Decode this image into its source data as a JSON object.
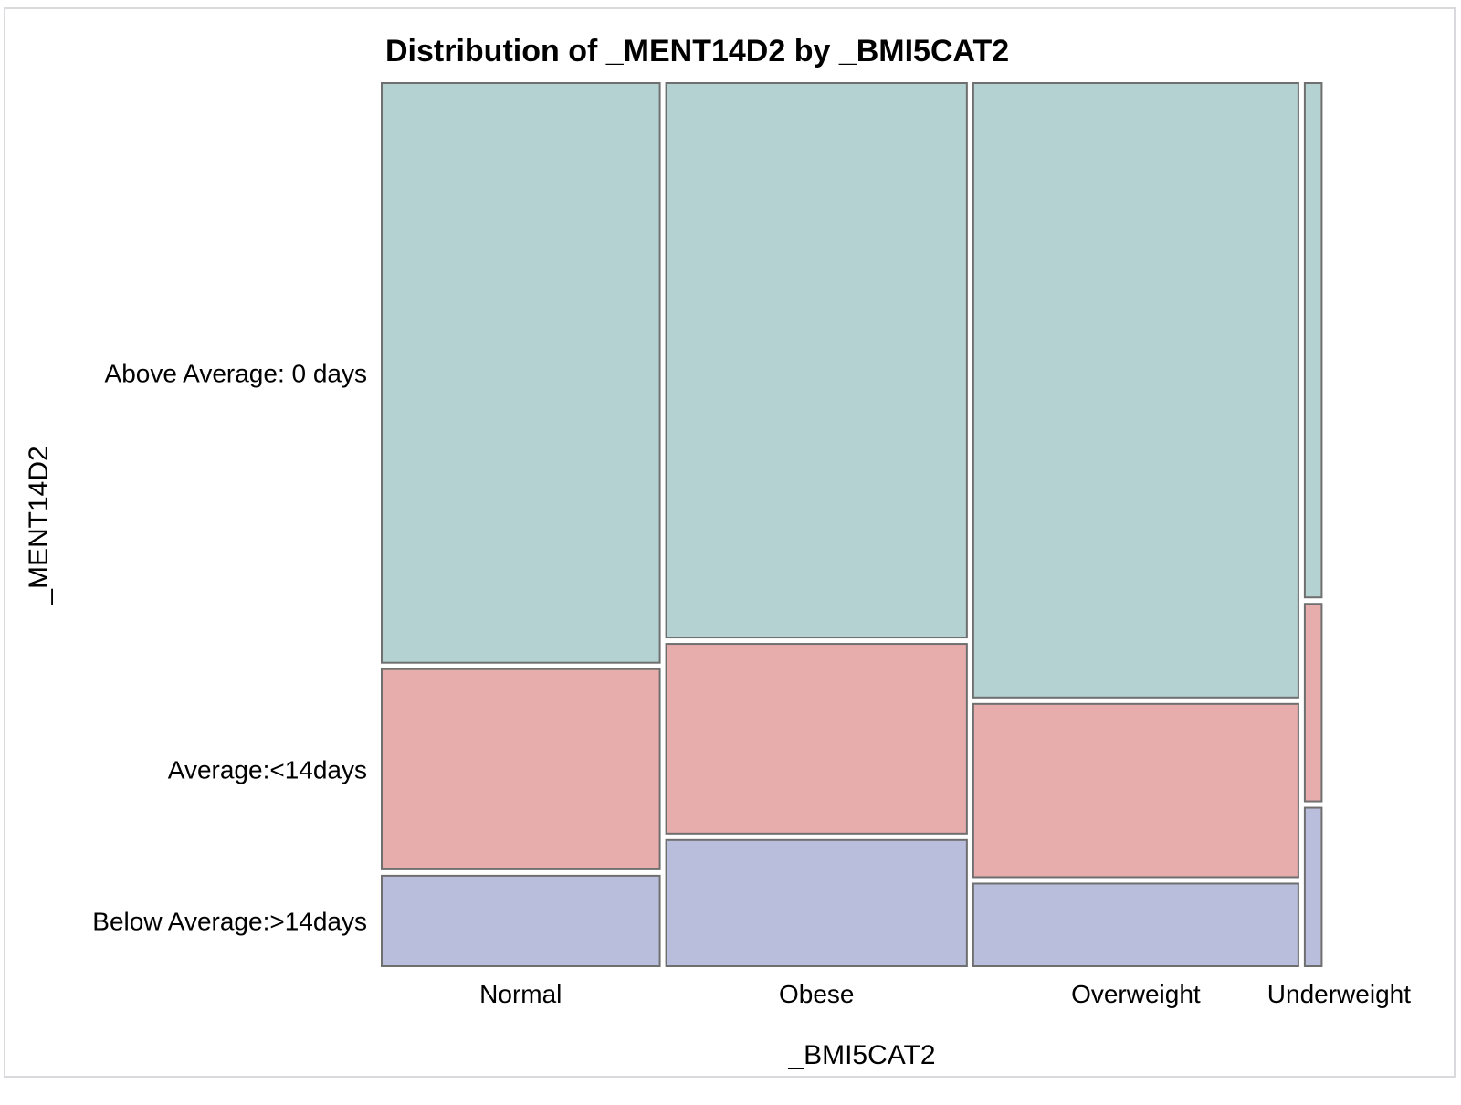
{
  "chart_data": {
    "type": "mosaic",
    "title": "Distribution of _MENT14D2 by _BMI5CAT2",
    "xlabel": "_BMI5CAT2",
    "ylabel": "_MENT14D2",
    "x_categories": [
      "Normal",
      "Obese",
      "Overweight",
      "Underweight"
    ],
    "x_proportions": [
      0.296,
      0.32,
      0.346,
      0.018
    ],
    "y_categories": [
      "Below Average:>14days",
      "Average:<14days",
      "Above Average: 0 days"
    ],
    "series": [
      {
        "name": "Below Average:>14days",
        "color": "#b8bedb",
        "values": [
          0.104,
          0.145,
          0.095,
          0.182
        ]
      },
      {
        "name": "Average:<14days",
        "color": "#e7acac",
        "values": [
          0.23,
          0.218,
          0.199,
          0.227
        ]
      },
      {
        "name": "Above Average: 0 days",
        "color": "#b4d2d1",
        "values": [
          0.666,
          0.637,
          0.706,
          0.591
        ]
      }
    ],
    "y_tick_labels": [
      "Below Average:>14days",
      "Average:<14days",
      "Above Average: 0 days"
    ],
    "grid": false,
    "legend": "none"
  }
}
